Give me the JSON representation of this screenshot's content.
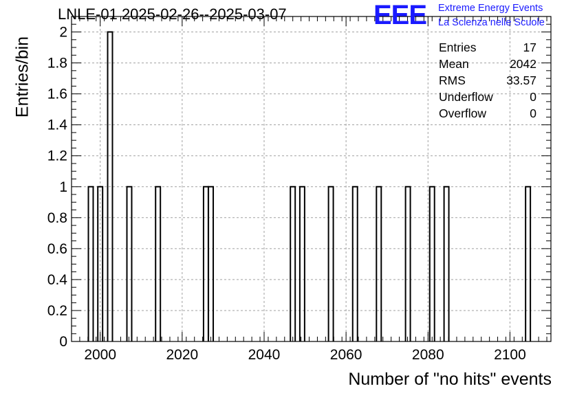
{
  "chart_data": {
    "type": "bar",
    "title": "LNLE-01 2025-02-26--2025-03-07",
    "xlabel": "Number of \"no hits\" events",
    "ylabel": "Entries/bin",
    "xlim": [
      1993,
      2110
    ],
    "ylim": [
      0,
      2.1
    ],
    "bin_width": 1.17,
    "bins": [
      {
        "x": 1997.7,
        "value": 1
      },
      {
        "x": 2000.0,
        "value": 1
      },
      {
        "x": 2002.4,
        "value": 2
      },
      {
        "x": 2007.1,
        "value": 1
      },
      {
        "x": 2014.1,
        "value": 1
      },
      {
        "x": 2025.8,
        "value": 1
      },
      {
        "x": 2027.0,
        "value": 1
      },
      {
        "x": 2047.0,
        "value": 1
      },
      {
        "x": 2049.3,
        "value": 1
      },
      {
        "x": 2056.3,
        "value": 1
      },
      {
        "x": 2062.2,
        "value": 1
      },
      {
        "x": 2068.0,
        "value": 1
      },
      {
        "x": 2075.1,
        "value": 1
      },
      {
        "x": 2081.0,
        "value": 1
      },
      {
        "x": 2084.5,
        "value": 1
      },
      {
        "x": 2104.4,
        "value": 1
      }
    ],
    "x_ticks": [
      2000,
      2020,
      2040,
      2060,
      2080,
      2100
    ],
    "x_tick_labels": [
      "2000",
      "2020",
      "2040",
      "2060",
      "2080",
      "2100"
    ],
    "y_ticks": [
      0,
      0.2,
      0.4,
      0.6,
      0.8,
      1,
      1.2,
      1.4,
      1.6,
      1.8,
      2
    ],
    "y_tick_labels": [
      "0",
      "0.2",
      "0.4",
      "0.6",
      "0.8",
      "1",
      "1.2",
      "1.4",
      "1.6",
      "1.8",
      "2"
    ],
    "grid": true,
    "stats": [
      {
        "label": "Entries",
        "value": "17"
      },
      {
        "label": "Mean",
        "value": "2042"
      },
      {
        "label": "RMS",
        "value": "33.57"
      },
      {
        "label": "Underflow",
        "value": "0"
      },
      {
        "label": "Overflow",
        "value": "0"
      }
    ],
    "colors": {
      "line": "#000000",
      "grid": "#a0a0a0",
      "logo": "#1a1aff"
    }
  },
  "logo": {
    "mark": "EEE",
    "line1": "Extreme Energy Events",
    "line2": "La Scienza nelle Scuole"
  }
}
